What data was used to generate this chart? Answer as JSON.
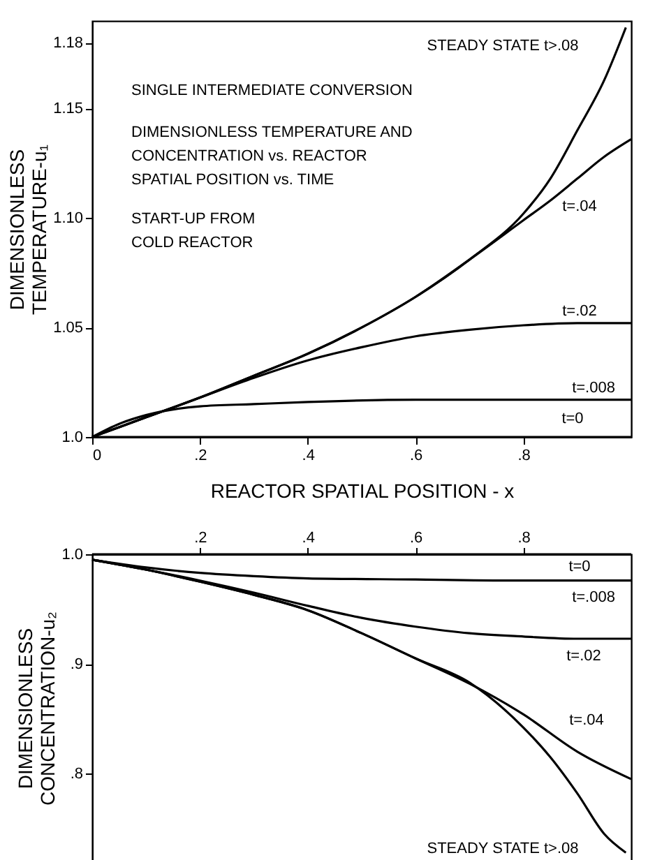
{
  "chart_data": [
    {
      "type": "line",
      "xlabel": "REACTOR SPATIAL POSITION - x",
      "ylabel": "DIMENSIONLESS\nTEMPERATURE-u₁",
      "xlim": [
        0,
        1
      ],
      "ylim": [
        1.0,
        1.19
      ],
      "xticks": [
        {
          "value": 0,
          "label": "0"
        },
        {
          "value": 0.2,
          "label": ".2"
        },
        {
          "value": 0.4,
          "label": ".4"
        },
        {
          "value": 0.6,
          "label": ".6"
        },
        {
          "value": 0.8,
          "label": ".8"
        }
      ],
      "yticks": [
        {
          "value": 1.0,
          "label": "1.0"
        },
        1.05,
        {
          "value": 1.1,
          "label": "1.10"
        },
        1.15,
        1.18
      ],
      "grid": false,
      "marker": "none",
      "line_style": "solid",
      "series": [
        {
          "color": "#000000",
          "x": [
            0,
            1
          ],
          "values": [
            1.0,
            1.0
          ]
        },
        {
          "color": "#000000",
          "x": [
            0,
            0.05,
            0.1,
            0.2,
            0.3,
            0.4,
            0.6,
            0.8,
            1.0
          ],
          "values": [
            1.0,
            1.006,
            1.01,
            1.014,
            1.015,
            1.016,
            1.017,
            1.017,
            1.017
          ]
        },
        {
          "color": "#000000",
          "x": [
            0,
            0.1,
            0.2,
            0.3,
            0.4,
            0.5,
            0.6,
            0.7,
            0.8,
            0.9,
            1.0
          ],
          "values": [
            1.0,
            1.009,
            1.018,
            1.027,
            1.035,
            1.041,
            1.046,
            1.049,
            1.051,
            1.052,
            1.052
          ]
        },
        {
          "color": "#000000",
          "x": [
            0,
            0.1,
            0.2,
            0.3,
            0.4,
            0.5,
            0.6,
            0.7,
            0.8,
            0.85,
            0.9,
            0.95,
            1.0
          ],
          "values": [
            1.0,
            1.009,
            1.018,
            1.028,
            1.038,
            1.05,
            1.064,
            1.081,
            1.099,
            1.108,
            1.118,
            1.128,
            1.136
          ]
        },
        {
          "color": "#000000",
          "x": [
            0,
            0.1,
            0.2,
            0.3,
            0.4,
            0.5,
            0.6,
            0.7,
            0.8,
            0.85,
            0.9,
            0.95,
            0.99
          ],
          "values": [
            1.0,
            1.009,
            1.018,
            1.028,
            1.038,
            1.05,
            1.064,
            1.081,
            1.102,
            1.118,
            1.14,
            1.163,
            1.187
          ]
        }
      ],
      "annotations": [
        "SINGLE INTERMEDIATE CONVERSION",
        "DIMENSIONLESS TEMPERATURE AND\nCONCENTRATION vs. REACTOR\nSPATIAL POSITION vs. TIME",
        "START-UP FROM\nCOLD REACTOR",
        "STEADY STATE t>.08",
        "t=.04",
        "t=.02",
        "t=.008",
        "t=0"
      ]
    },
    {
      "type": "line",
      "ylabel": "DIMENSIONLESS\nCONCENTRATION-u₂",
      "xlim": [
        0,
        1
      ],
      "ylim": [
        0.72,
        1.0
      ],
      "xticks": [
        {
          "value": 0.2,
          "label": ".2"
        },
        {
          "value": 0.4,
          "label": ".4"
        },
        {
          "value": 0.6,
          "label": ".6"
        },
        {
          "value": 0.8,
          "label": ".8"
        }
      ],
      "yticks": [
        {
          "value": 1.0,
          "label": "1.0"
        },
        {
          "value": 0.9,
          "label": ".9"
        },
        {
          "value": 0.8,
          "label": ".8"
        }
      ],
      "grid": false,
      "marker": "none",
      "line_style": "solid",
      "series": [
        {
          "color": "#000000",
          "x": [
            0,
            1
          ],
          "values": [
            1.0,
            1.0
          ]
        },
        {
          "color": "#000000",
          "x": [
            0,
            0.1,
            0.2,
            0.3,
            0.4,
            0.6,
            0.8,
            1.0
          ],
          "values": [
            0.995,
            0.988,
            0.983,
            0.98,
            0.978,
            0.977,
            0.976,
            0.976
          ]
        },
        {
          "color": "#000000",
          "x": [
            0,
            0.1,
            0.2,
            0.3,
            0.4,
            0.5,
            0.6,
            0.7,
            0.8,
            0.9,
            1.0
          ],
          "values": [
            0.995,
            0.986,
            0.976,
            0.965,
            0.953,
            0.942,
            0.934,
            0.928,
            0.925,
            0.923,
            0.923
          ]
        },
        {
          "color": "#000000",
          "x": [
            0,
            0.1,
            0.2,
            0.3,
            0.4,
            0.5,
            0.6,
            0.7,
            0.8,
            0.9,
            1.0
          ],
          "values": [
            0.995,
            0.986,
            0.975,
            0.963,
            0.949,
            0.928,
            0.905,
            0.882,
            0.854,
            0.82,
            0.795
          ]
        },
        {
          "color": "#000000",
          "x": [
            0,
            0.1,
            0.2,
            0.3,
            0.4,
            0.5,
            0.6,
            0.7,
            0.8,
            0.85,
            0.9,
            0.95,
            0.99
          ],
          "values": [
            0.995,
            0.986,
            0.975,
            0.963,
            0.949,
            0.928,
            0.905,
            0.883,
            0.842,
            0.815,
            0.782,
            0.745,
            0.728
          ]
        }
      ],
      "annotations": [
        "t=0",
        "t=.008",
        "t=.02",
        "t=.04",
        "STEADY STATE t>.08"
      ]
    }
  ]
}
